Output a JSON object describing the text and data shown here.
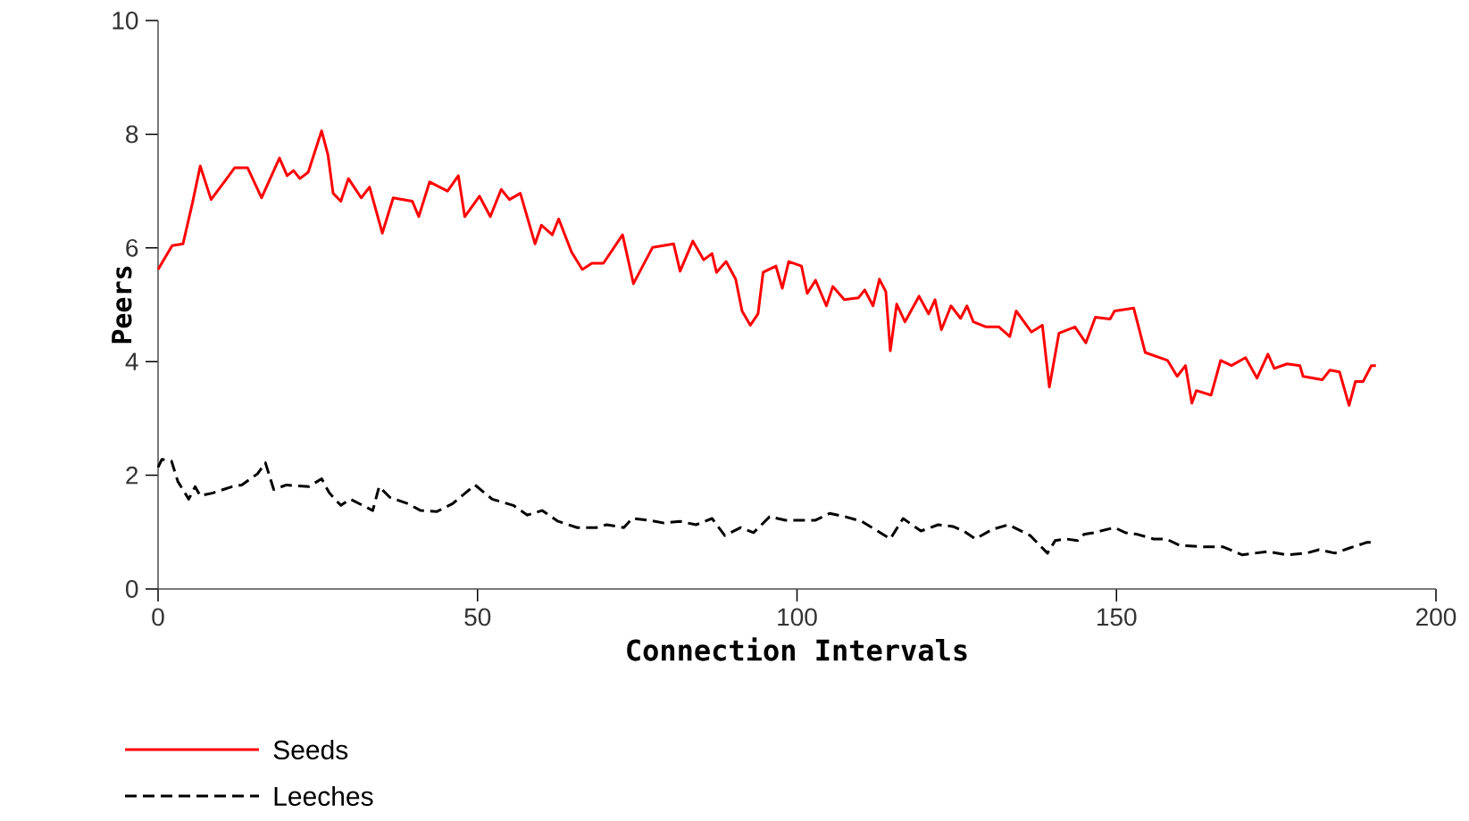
{
  "chart_data": {
    "type": "line",
    "xlabel": "Connection Intervals",
    "ylabel": "Peers",
    "xlim": [
      0,
      200
    ],
    "ylim": [
      0,
      10
    ],
    "xticks": [
      0,
      50,
      100,
      150,
      200
    ],
    "yticks": [
      0,
      2,
      4,
      6,
      8,
      10
    ],
    "legend": "bottom left",
    "series": [
      {
        "name": "Seeds",
        "color": "#ff0000",
        "line_style": "solid",
        "x": [
          0,
          2.2,
          3.9,
          5.4,
          6.6,
          8.3,
          12.0,
          14.0,
          16.2,
          19.0,
          20.2,
          21.2,
          22.2,
          23.5,
          25.6,
          26.6,
          27.4,
          28.6,
          29.8,
          31.8,
          33.1,
          35.1,
          36.8,
          39.8,
          40.8,
          42.5,
          45.3,
          47.0,
          48.0,
          50.3,
          52.0,
          53.7,
          55.0,
          56.7,
          59.0,
          60.0,
          61.7,
          62.7,
          64.7,
          66.4,
          67.9,
          69.7,
          72.7,
          74.4,
          77.4,
          80.7,
          81.7,
          83.7,
          85.4,
          86.7,
          87.4,
          88.9,
          90.4,
          91.4,
          92.7,
          93.9,
          94.7,
          96.7,
          97.7,
          98.7,
          100.7,
          101.6,
          102.9,
          104.6,
          105.6,
          107.4,
          109.6,
          110.6,
          111.9,
          112.9,
          113.9,
          114.6,
          115.6,
          116.9,
          119.1,
          120.6,
          121.6,
          122.6,
          124.1,
          125.6,
          126.6,
          127.6,
          129.6,
          131.6,
          133.3,
          134.3,
          136.7,
          138.4,
          139.5,
          141.0,
          143.5,
          145.2,
          146.7,
          149.0,
          149.7,
          152.7,
          154.5,
          158.0,
          159.5,
          160.8,
          161.8,
          162.5,
          164.8,
          166.3,
          168.0,
          170.2,
          172.0,
          173.7,
          174.7,
          176.7,
          178.7,
          179.2,
          182.2,
          183.4,
          184.9,
          186.4,
          187.4,
          188.6,
          189.9,
          190.6
        ],
        "values": [
          5.62,
          6.04,
          6.07,
          6.8,
          7.44,
          6.85,
          7.41,
          7.41,
          6.88,
          7.58,
          7.27,
          7.36,
          7.22,
          7.33,
          8.06,
          7.63,
          6.96,
          6.82,
          7.22,
          6.88,
          7.07,
          6.26,
          6.88,
          6.82,
          6.55,
          7.16,
          7.0,
          7.27,
          6.55,
          6.91,
          6.55,
          7.03,
          6.85,
          6.96,
          6.07,
          6.4,
          6.23,
          6.51,
          5.93,
          5.62,
          5.73,
          5.73,
          6.23,
          5.37,
          6.01,
          6.07,
          5.59,
          6.12,
          5.79,
          5.9,
          5.57,
          5.76,
          5.45,
          4.89,
          4.64,
          4.84,
          5.57,
          5.68,
          5.29,
          5.76,
          5.68,
          5.2,
          5.43,
          4.98,
          5.32,
          5.09,
          5.12,
          5.26,
          4.98,
          5.45,
          5.23,
          4.19,
          5.01,
          4.7,
          5.15,
          4.84,
          5.09,
          4.56,
          4.98,
          4.76,
          4.98,
          4.7,
          4.61,
          4.61,
          4.44,
          4.89,
          4.52,
          4.64,
          3.55,
          4.5,
          4.61,
          4.33,
          4.78,
          4.75,
          4.89,
          4.94,
          4.16,
          4.02,
          3.74,
          3.93,
          3.27,
          3.49,
          3.41,
          4.02,
          3.93,
          4.07,
          3.71,
          4.13,
          3.88,
          3.96,
          3.93,
          3.74,
          3.68,
          3.85,
          3.82,
          3.23,
          3.65,
          3.65,
          3.93,
          3.93
        ]
      },
      {
        "name": "Leeches",
        "color": "#000000",
        "line_style": "dashed",
        "x": [
          0,
          0.6,
          2.1,
          3.1,
          4.8,
          5.8,
          6.6,
          8.6,
          11.6,
          13.1,
          15.6,
          16.8,
          18.1,
          20.1,
          23.6,
          25.6,
          26.8,
          28.6,
          30.1,
          33.6,
          34.6,
          36.3,
          39.1,
          41.1,
          43.6,
          46.1,
          49.6,
          52.3,
          55.6,
          57.8,
          60.1,
          62.6,
          65.6,
          68.6,
          70.2,
          72.9,
          74.2,
          76.7,
          79.2,
          81.7,
          84.2,
          86.7,
          88.7,
          91.2,
          93.2,
          95.7,
          98.2,
          101.1,
          102.9,
          105.1,
          107.6,
          110.1,
          112.6,
          114.6,
          116.6,
          119.4,
          122.1,
          124.4,
          126.1,
          127.9,
          130.6,
          133.1,
          136.5,
          139.2,
          140.4,
          142.1,
          143.9,
          144.9,
          146.4,
          149.7,
          151.4,
          153.3,
          155.8,
          157.8,
          159.8,
          163.8,
          166.7,
          169.7,
          173.7,
          176.7,
          179.7,
          181.7,
          184.2,
          186.2,
          189.2,
          190
        ],
        "values": [
          2.14,
          2.28,
          2.25,
          1.89,
          1.58,
          1.8,
          1.64,
          1.69,
          1.8,
          1.83,
          2.03,
          2.22,
          1.75,
          1.83,
          1.8,
          1.94,
          1.69,
          1.47,
          1.58,
          1.38,
          1.8,
          1.61,
          1.5,
          1.38,
          1.36,
          1.5,
          1.83,
          1.58,
          1.47,
          1.3,
          1.38,
          1.19,
          1.08,
          1.08,
          1.13,
          1.08,
          1.24,
          1.21,
          1.16,
          1.19,
          1.13,
          1.24,
          0.94,
          1.08,
          0.99,
          1.27,
          1.21,
          1.21,
          1.21,
          1.33,
          1.27,
          1.19,
          1.02,
          0.88,
          1.24,
          1.02,
          1.13,
          1.1,
          1.02,
          0.88,
          1.05,
          1.13,
          0.94,
          0.63,
          0.85,
          0.88,
          0.85,
          0.96,
          0.99,
          1.08,
          0.99,
          0.96,
          0.88,
          0.88,
          0.77,
          0.74,
          0.74,
          0.6,
          0.66,
          0.6,
          0.63,
          0.69,
          0.63,
          0.71,
          0.82,
          0.82
        ]
      }
    ]
  }
}
